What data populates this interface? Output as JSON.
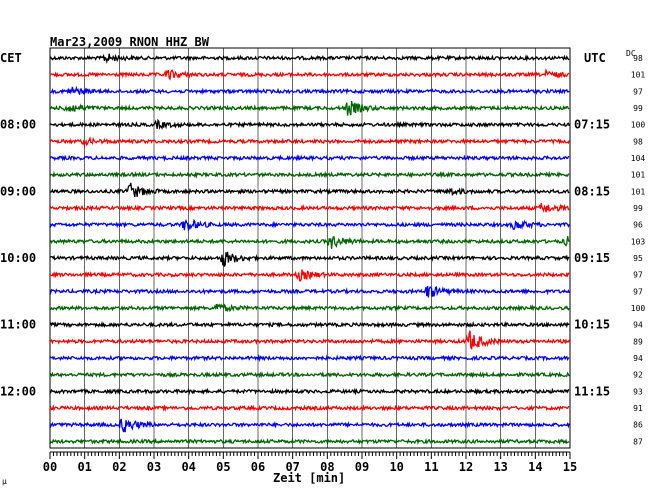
{
  "header": {
    "title": "Mar23,2009   RNON HHZ BW",
    "left_tz": "CET",
    "right_tz": "UTC",
    "dc_label": "DC"
  },
  "chart_data": {
    "type": "helicorder",
    "title": "Mar23,2009   RNON HHZ BW",
    "xlabel": "Zeit [min]",
    "x_ticks": [
      "00",
      "01",
      "02",
      "03",
      "04",
      "05",
      "06",
      "07",
      "08",
      "09",
      "10",
      "11",
      "12",
      "13",
      "14",
      "15"
    ],
    "xlim": [
      0,
      15
    ],
    "colors": [
      "#000000",
      "#ff0000",
      "#0000ff",
      "#006400"
    ],
    "left_time_labels": [
      {
        "row": 4,
        "text": "08:00"
      },
      {
        "row": 8,
        "text": "09:00"
      },
      {
        "row": 12,
        "text": "10:00"
      },
      {
        "row": 16,
        "text": "11:00"
      },
      {
        "row": 20,
        "text": "12:00"
      }
    ],
    "right_time_labels": [
      {
        "row": 4,
        "text": "07:15"
      },
      {
        "row": 8,
        "text": "08:15"
      },
      {
        "row": 12,
        "text": "09:15"
      },
      {
        "row": 16,
        "text": "10:15"
      },
      {
        "row": 20,
        "text": "11:15"
      }
    ],
    "dc_values": [
      "98",
      "101",
      "97",
      "99",
      "100",
      "98",
      "104",
      "101",
      "101",
      "99",
      "96",
      "103",
      "95",
      "97",
      "97",
      "100",
      "94",
      "89",
      "94",
      "92",
      "93",
      "91",
      "86",
      "87"
    ],
    "events": [
      {
        "row": 0,
        "minute": 1.6,
        "amp": 0.8
      },
      {
        "row": 1,
        "minute": 3.4,
        "amp": 0.9
      },
      {
        "row": 1,
        "minute": 14.3,
        "amp": 0.6
      },
      {
        "row": 2,
        "minute": 0.6,
        "amp": 0.9
      },
      {
        "row": 3,
        "minute": 0.5,
        "amp": 1.0
      },
      {
        "row": 3,
        "minute": 8.6,
        "amp": 1.5
      },
      {
        "row": 4,
        "minute": 3.1,
        "amp": 0.6
      },
      {
        "row": 5,
        "minute": 1.0,
        "amp": 0.5
      },
      {
        "row": 8,
        "minute": 2.3,
        "amp": 1.6
      },
      {
        "row": 8,
        "minute": 11.5,
        "amp": 0.6
      },
      {
        "row": 9,
        "minute": 14.2,
        "amp": 1.0
      },
      {
        "row": 10,
        "minute": 3.9,
        "amp": 1.3
      },
      {
        "row": 10,
        "minute": 13.4,
        "amp": 0.9
      },
      {
        "row": 11,
        "minute": 8.1,
        "amp": 1.3
      },
      {
        "row": 11,
        "minute": 14.9,
        "amp": 0.8
      },
      {
        "row": 12,
        "minute": 5.0,
        "amp": 1.6
      },
      {
        "row": 13,
        "minute": 7.2,
        "amp": 1.0
      },
      {
        "row": 14,
        "minute": 10.9,
        "amp": 1.3
      },
      {
        "row": 15,
        "minute": 4.8,
        "amp": 0.8
      },
      {
        "row": 17,
        "minute": 12.1,
        "amp": 2.0
      },
      {
        "row": 22,
        "minute": 2.1,
        "amp": 1.5
      }
    ]
  },
  "footer_mark": "µ"
}
